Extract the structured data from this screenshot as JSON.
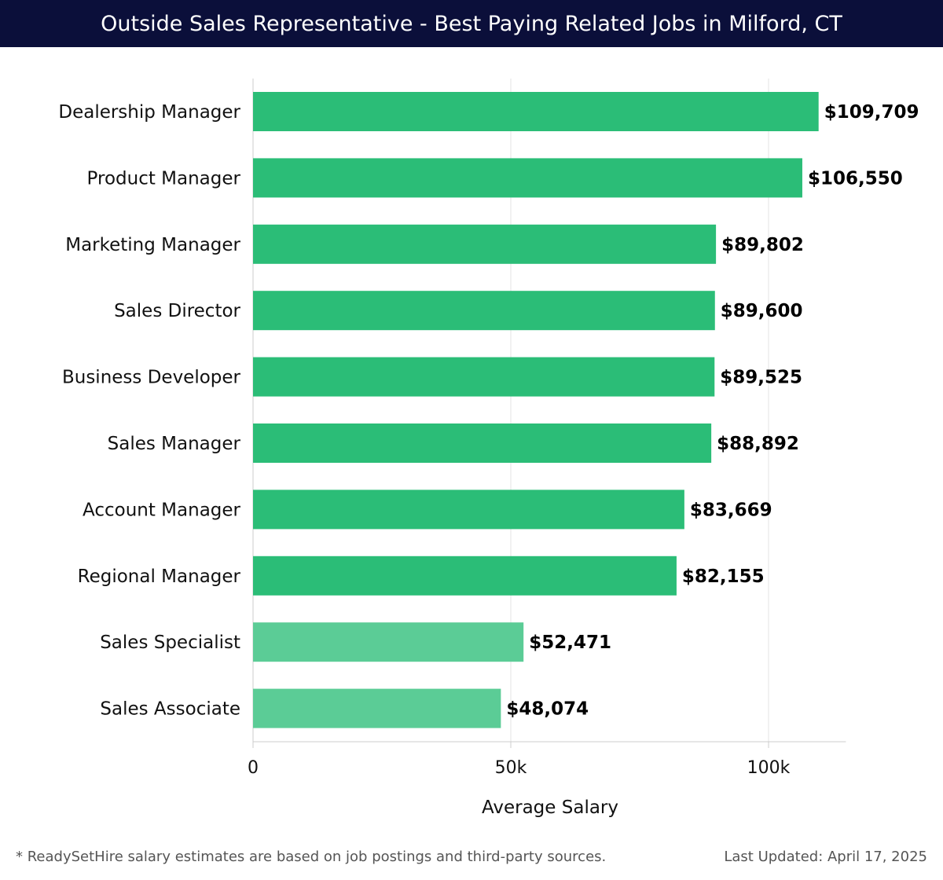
{
  "header": {
    "title": "Outside Sales Representative - Best Paying Related Jobs in Milford, CT"
  },
  "chart_data": {
    "type": "bar",
    "orientation": "horizontal",
    "title": "Outside Sales Representative - Best Paying Related Jobs in Milford, CT",
    "xlabel": "Average Salary",
    "ylabel": "",
    "xlim": [
      0,
      115000
    ],
    "x_ticks": [
      0,
      50000,
      100000
    ],
    "x_tick_labels": [
      "0",
      "50k",
      "100k"
    ],
    "grid": "vertical",
    "categories": [
      "Dealership Manager",
      "Product Manager",
      "Marketing Manager",
      "Sales Director",
      "Business Developer",
      "Sales Manager",
      "Account Manager",
      "Regional Manager",
      "Sales Specialist",
      "Sales Associate"
    ],
    "values": [
      109709,
      106550,
      89802,
      89600,
      89525,
      88892,
      83669,
      82155,
      52471,
      48074
    ],
    "value_labels": [
      "$109,709",
      "$106,550",
      "$89,802",
      "$89,600",
      "$89,525",
      "$88,892",
      "$83,669",
      "$82,155",
      "$52,471",
      "$48,074"
    ],
    "colors": {
      "bar_dark": "#2bbd77",
      "bar_light": "#5bcc96",
      "grid": "#e3e3e3",
      "axis": "#cccccc",
      "text": "#111111"
    }
  },
  "footer": {
    "note": "* ReadySetHire salary estimates are based on job postings and third-party sources.",
    "updated": "Last Updated: April 17, 2025"
  }
}
